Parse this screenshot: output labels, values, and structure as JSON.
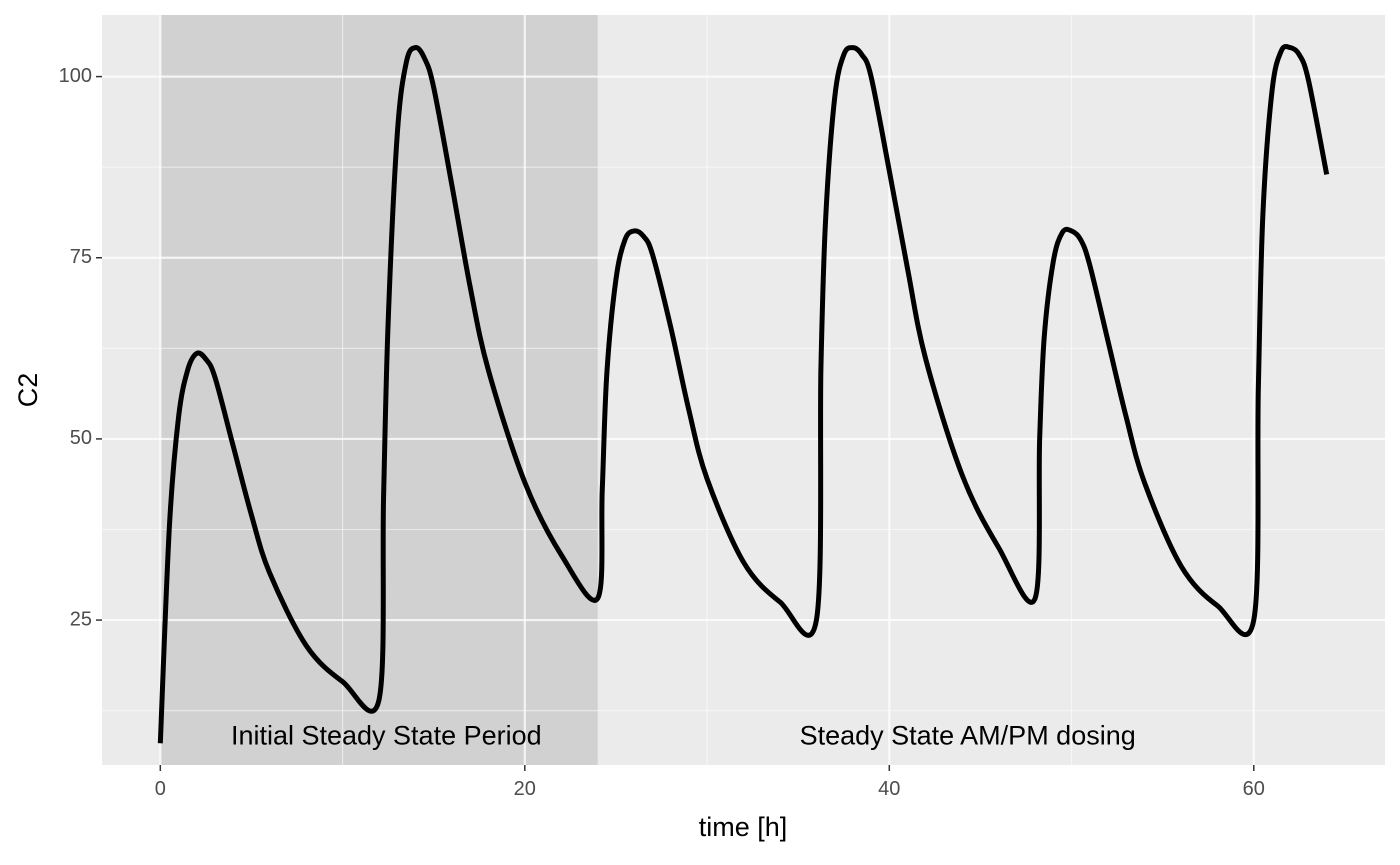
{
  "chart_data": {
    "type": "line",
    "title": "",
    "xlabel": "time [h]",
    "ylabel": "C2",
    "xlim": [
      -3.2,
      67.2
    ],
    "ylim": [
      5.0,
      108.5
    ],
    "x_ticks": [
      0,
      20,
      40,
      60
    ],
    "x_tick_labels": [
      "0",
      "20",
      "40",
      "60"
    ],
    "y_ticks": [
      25,
      50,
      75,
      100
    ],
    "y_tick_labels": [
      "25",
      "50",
      "75",
      "100"
    ],
    "grid": true,
    "legend": "none",
    "colors": {
      "panel": "#ebebeb",
      "grid": "#ffffff",
      "shade": "#cccccc",
      "line": "#000000",
      "tick_text": "#4d4d4d"
    },
    "shaded_regions": [
      {
        "x_start": 0,
        "x_end": 24
      }
    ],
    "annotations": [
      {
        "text": "Initial Steady State Period",
        "x": 12.4,
        "y": 8.8
      },
      {
        "text": "Steady State AM/PM dosing",
        "x": 44.3,
        "y": 8.8
      }
    ],
    "series": [
      {
        "x": [
          0,
          0.5,
          1,
          1.5,
          2,
          2.5,
          3,
          4,
          5,
          6,
          8,
          10,
          12,
          12.25,
          12.5,
          13,
          13.5,
          14,
          14.5,
          15,
          16,
          17,
          18,
          20,
          22,
          24,
          24.25,
          24.5,
          25,
          25.5,
          26,
          26.5,
          27,
          28,
          29,
          30,
          32,
          34,
          36,
          36.25,
          36.5,
          37,
          37.5,
          38,
          38.5,
          39,
          40,
          41,
          42,
          44,
          46,
          48,
          48.25,
          48.5,
          49,
          49.5,
          50,
          50.5,
          51,
          52,
          53,
          54,
          56,
          58,
          60,
          60.25,
          60.5,
          61,
          61.5,
          62,
          62.5,
          63,
          64
        ],
        "y": [
          8,
          38,
          53,
          59.5,
          61.8,
          61,
          58.5,
          49,
          39.5,
          31.5,
          21.5,
          16.5,
          14,
          42,
          66,
          92,
          102,
          104,
          102.5,
          98.5,
          85,
          71,
          59.5,
          44,
          34,
          28,
          43,
          59,
          72,
          77.5,
          78.7,
          78,
          75.5,
          65.5,
          54,
          44.5,
          33,
          27.5,
          25,
          60,
          80,
          97,
          103,
          104,
          103,
          100,
          87,
          73.5,
          61,
          45,
          35,
          28,
          50,
          64,
          74.5,
          78.5,
          78.7,
          77.5,
          74,
          63.5,
          53,
          44,
          32.5,
          27,
          25,
          57,
          81,
          98,
          103.5,
          104,
          103,
          99.5,
          86.5
        ]
      }
    ]
  }
}
